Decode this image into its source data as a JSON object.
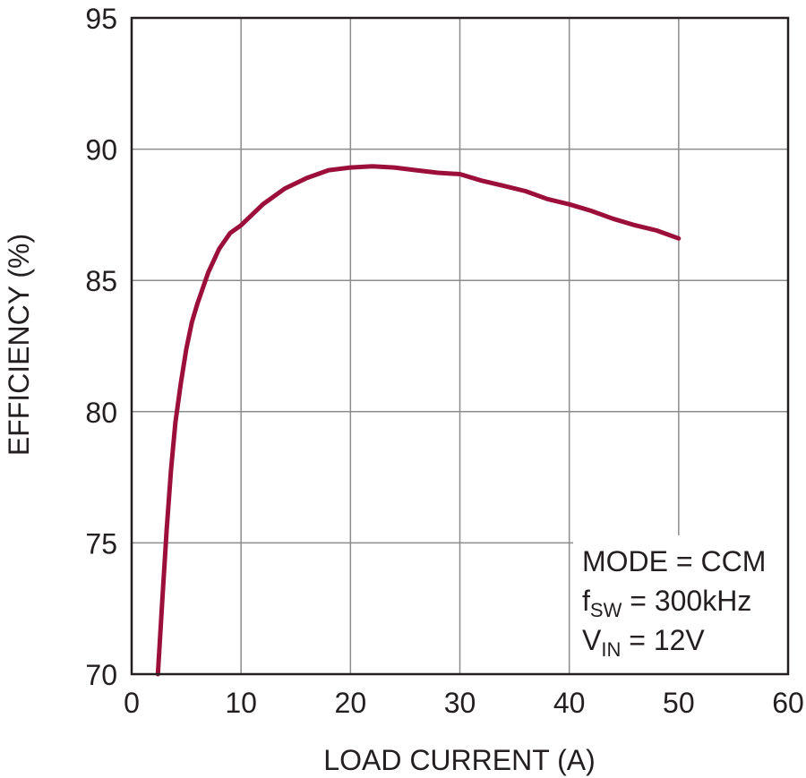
{
  "chart_data": {
    "type": "line",
    "xlabel": "LOAD CURRENT (A)",
    "ylabel": "EFFICIENCY (%)",
    "xlim": [
      0,
      60
    ],
    "ylim": [
      70,
      95
    ],
    "xticks": [
      "0",
      "10",
      "20",
      "30",
      "40",
      "50",
      "60"
    ],
    "yticks": [
      "95",
      "90",
      "85",
      "80",
      "75",
      "70"
    ],
    "grid": true,
    "line_color": "#9b0f3a",
    "series": [
      {
        "x": [
          2.4,
          2.8,
          3.2,
          3.6,
          4.0,
          4.5,
          5.0,
          5.5,
          6.0,
          7.0,
          8.0,
          9.0,
          10.0,
          12.0,
          14.0,
          16.0,
          18.0,
          20.0,
          22.0,
          24.0,
          26.0,
          28.0,
          30.0,
          32.0,
          34.0,
          36.0,
          38.0,
          40.0,
          42.0,
          44.0,
          46.0,
          48.0,
          50.0
        ],
        "y": [
          70.0,
          72.8,
          75.5,
          77.8,
          79.6,
          81.1,
          82.4,
          83.4,
          84.1,
          85.3,
          86.2,
          86.8,
          87.1,
          87.9,
          88.5,
          88.9,
          89.2,
          89.3,
          89.35,
          89.3,
          89.2,
          89.1,
          89.05,
          88.8,
          88.6,
          88.4,
          88.1,
          87.9,
          87.65,
          87.35,
          87.1,
          86.9,
          86.6
        ]
      }
    ],
    "annotation": {
      "line1": "MODE = CCM",
      "line2_main": "f",
      "line2_sub": "SW",
      "line2_rest": " = 300kHz",
      "line3_main": "V",
      "line3_sub": "IN",
      "line3_rest": " = 12V"
    }
  }
}
